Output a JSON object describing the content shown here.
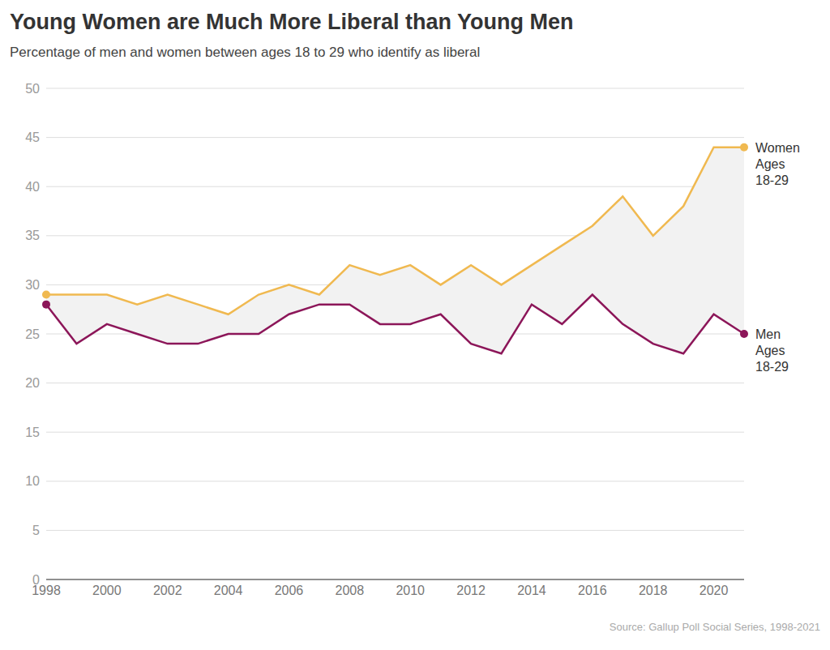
{
  "chart_data": {
    "type": "line",
    "title": "Young Women are Much More Liberal than Young Men",
    "subtitle": "Percentage of men and women between ages 18 to 29 who identify as liberal",
    "source": "Source: Gallup Poll Social Series, 1998-2021",
    "x": [
      1998,
      1999,
      2000,
      2001,
      2002,
      2003,
      2004,
      2005,
      2006,
      2007,
      2008,
      2009,
      2010,
      2011,
      2012,
      2013,
      2014,
      2015,
      2016,
      2017,
      2018,
      2019,
      2020,
      2021
    ],
    "series": [
      {
        "name": "Women Ages 18-29",
        "color": "#f0b950",
        "values": [
          29,
          29,
          29,
          28,
          29,
          28,
          27,
          29,
          30,
          29,
          32,
          31,
          32,
          30,
          32,
          30,
          32,
          34,
          36,
          39,
          35,
          38,
          44,
          44
        ]
      },
      {
        "name": "Men Ages 18-29",
        "color": "#8c1659",
        "values": [
          28,
          24,
          26,
          25,
          24,
          24,
          25,
          25,
          27,
          28,
          28,
          26,
          26,
          27,
          24,
          23,
          28,
          26,
          29,
          26,
          24,
          23,
          27,
          25
        ]
      }
    ],
    "xlim": [
      1998,
      2021
    ],
    "xticks": [
      1998,
      2000,
      2002,
      2004,
      2006,
      2008,
      2010,
      2012,
      2014,
      2016,
      2018,
      2020
    ],
    "ylim": [
      0,
      50
    ],
    "yticks": [
      0,
      5,
      10,
      15,
      20,
      25,
      30,
      35,
      40,
      45,
      50
    ],
    "grid": true
  }
}
